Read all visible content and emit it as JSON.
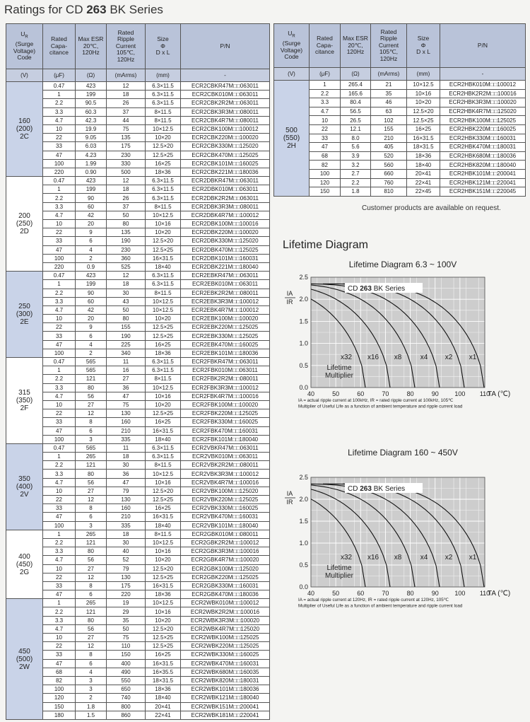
{
  "title": {
    "prefix": "Ratings for CD",
    "bold": "263",
    "suffix": "BK Series"
  },
  "table_headers": {
    "ur": {
      "symbol": "U",
      "sub": "R",
      "rest": "(Surge\nVoltage)\nCode"
    },
    "columns": [
      "Rated\nCapa-\ncitance",
      "Max ESR\n20℃,\n120Hz",
      "Rated\nRipple\nCurrent\n105℃,\n120Hz",
      "Size\nΦ\nD x L",
      "P/N"
    ],
    "units": [
      "(V)",
      "(μF)",
      "(Ω)",
      "(mArms)",
      "(mm)",
      "-"
    ]
  },
  "left_table": {
    "groups": [
      {
        "code": "160\n(200)\n2C",
        "rows": [
          [
            "0.47",
            "423",
            "12",
            "6.3×11.5",
            "ECR2CBKR47M□□063011"
          ],
          [
            "1",
            "199",
            "18",
            "6.3×11.5",
            "ECR2CBK010M□□063011"
          ],
          [
            "2.2",
            "90.5",
            "26",
            "6.3×11.5",
            "ECR2CBK2R2M□□063011"
          ],
          [
            "3.3",
            "60.3",
            "37",
            "8×11.5",
            "ECR2CBK3R3M□□080011"
          ],
          [
            "4.7",
            "42.3",
            "44",
            "8×11.5",
            "ECR2CBK4R7M□□080011"
          ],
          [
            "10",
            "19.9",
            "75",
            "10×12.5",
            "ECR2CBK100M□□100012"
          ],
          [
            "22",
            "9.05",
            "135",
            "10×20",
            "ECR2CBK220M□□100020"
          ],
          [
            "33",
            "6.03",
            "175",
            "12.5×20",
            "ECR2CBK330M□□125020"
          ],
          [
            "47",
            "4.23",
            "230",
            "12.5×25",
            "ECR2CBK470M□□125025"
          ],
          [
            "100",
            "1.99",
            "330",
            "16×25",
            "ECR2CBK101M□□160025"
          ],
          [
            "220",
            "0.90",
            "500",
            "18×36",
            "ECR2CBK221M□□180036"
          ]
        ]
      },
      {
        "code": "200\n(250)\n2D",
        "rows": [
          [
            "0.47",
            "423",
            "12",
            "6.3×11.5",
            "ECR2DBKR47M□□063011"
          ],
          [
            "1",
            "199",
            "18",
            "6.3×11.5",
            "ECR2DBK010M□□063011"
          ],
          [
            "2.2",
            "90",
            "26",
            "6.3×11.5",
            "ECR2DBK2R2M□□063011"
          ],
          [
            "3.3",
            "60",
            "37",
            "8×11.5",
            "ECR2DBK3R3M□□080011"
          ],
          [
            "4.7",
            "42",
            "50",
            "10×12.5",
            "ECR2DBK4R7M□□100012"
          ],
          [
            "10",
            "20",
            "80",
            "10×16",
            "ECR2DBK100M□□100016"
          ],
          [
            "22",
            "9",
            "135",
            "10×20",
            "ECR2DBK220M□□100020"
          ],
          [
            "33",
            "6",
            "190",
            "12.5×20",
            "ECR2DBK330M□□125020"
          ],
          [
            "47",
            "4",
            "230",
            "12.5×25",
            "ECR2DBK470M□□125025"
          ],
          [
            "100",
            "2",
            "360",
            "16×31.5",
            "ECR2DBK101M□□160031"
          ],
          [
            "220",
            "0.9",
            "525",
            "18×40",
            "ECR2DBK221M□□180040"
          ]
        ]
      },
      {
        "code": "250\n(300)\n2E",
        "rows": [
          [
            "0.47",
            "423",
            "12",
            "6.3×11.5",
            "ECR2EBKR47M□□063011"
          ],
          [
            "1",
            "199",
            "18",
            "6.3×11.5",
            "ECR2EBK010M□□063011"
          ],
          [
            "2.2",
            "90",
            "30",
            "8×11.5",
            "ECR2EBK2R2M□□080011"
          ],
          [
            "3.3",
            "60",
            "43",
            "10×12.5",
            "ECR2EBK3R3M□□100012"
          ],
          [
            "4.7",
            "42",
            "50",
            "10×12.5",
            "ECR2EBK4R7M□□100012"
          ],
          [
            "10",
            "20",
            "80",
            "10×20",
            "ECR2EBK100M□□100020"
          ],
          [
            "22",
            "9",
            "155",
            "12.5×25",
            "ECR2EBK220M□□125025"
          ],
          [
            "33",
            "6",
            "190",
            "12.5×25",
            "ECR2EBK330M□□125025"
          ],
          [
            "47",
            "4",
            "225",
            "16×25",
            "ECR2EBK470M□□160025"
          ],
          [
            "100",
            "2",
            "340",
            "18×36",
            "ECR2EBK101M□□180036"
          ]
        ]
      },
      {
        "code": "315\n(350)\n2F",
        "rows": [
          [
            "0.47",
            "565",
            "11",
            "6.3×11.5",
            "ECR2FBKR47M□□063011"
          ],
          [
            "1",
            "565",
            "16",
            "6.3×11.5",
            "ECR2FBK010M□□063011"
          ],
          [
            "2.2",
            "121",
            "27",
            "8×11.5",
            "ECR2FBK2R2M□□080011"
          ],
          [
            "3.3",
            "80",
            "36",
            "10×12.5",
            "ECR2FBK3R3M□□100012"
          ],
          [
            "4.7",
            "56",
            "47",
            "10×16",
            "ECR2FBK4R7M□□100016"
          ],
          [
            "10",
            "27",
            "75",
            "10×20",
            "ECR2FBK100M□□100020"
          ],
          [
            "22",
            "12",
            "130",
            "12.5×25",
            "ECR2FBK220M□□125025"
          ],
          [
            "33",
            "8",
            "160",
            "16×25",
            "ECR2FBK330M□□160025"
          ],
          [
            "47",
            "6",
            "210",
            "16×31.5",
            "ECR2FBK470M□□160031"
          ],
          [
            "100",
            "3",
            "335",
            "18×40",
            "ECR2FBK101M□□180040"
          ]
        ]
      },
      {
        "code": "350\n(400)\n2V",
        "rows": [
          [
            "0.47",
            "565",
            "11",
            "6.3×11.5",
            "ECR2VBKR47M□□063011"
          ],
          [
            "1",
            "265",
            "18",
            "6.3×11.5",
            "ECR2VBK010M□□063011"
          ],
          [
            "2.2",
            "121",
            "30",
            "8×11.5",
            "ECR2VBK2R2M□□080011"
          ],
          [
            "3.3",
            "80",
            "36",
            "10×12.5",
            "ECR2VBK3R3M□□100012"
          ],
          [
            "4.7",
            "56",
            "47",
            "10×16",
            "ECR2VBK4R7M□□100016"
          ],
          [
            "10",
            "27",
            "79",
            "12.5×20",
            "ECR2VBK100M□□125020"
          ],
          [
            "22",
            "12",
            "130",
            "12.5×25",
            "ECR2VBK220M□□125025"
          ],
          [
            "33",
            "8",
            "160",
            "16×25",
            "ECR2VBK330M□□160025"
          ],
          [
            "47",
            "6",
            "210",
            "16×31.5",
            "ECR2VBK470M□□160031"
          ],
          [
            "100",
            "3",
            "335",
            "18×40",
            "ECR2VBK101M□□180040"
          ]
        ]
      },
      {
        "code": "400\n(450)\n2G",
        "rows": [
          [
            "1",
            "265",
            "18",
            "8×11.5",
            "ECR2GBK010M□□080011"
          ],
          [
            "2.2",
            "121",
            "30",
            "10×12.5",
            "ECR2GBK2R2M□□100012"
          ],
          [
            "3.3",
            "80",
            "40",
            "10×16",
            "ECR2GBK3R3M□□100016"
          ],
          [
            "4.7",
            "56",
            "52",
            "10×20",
            "ECR2GBK4R7M□□100020"
          ],
          [
            "10",
            "27",
            "79",
            "12.5×20",
            "ECR2GBK100M□□125020"
          ],
          [
            "22",
            "12",
            "130",
            "12.5×25",
            "ECR2GBK220M□□125025"
          ],
          [
            "33",
            "8",
            "175",
            "16×31.5",
            "ECR2GBK330M□□160031"
          ],
          [
            "47",
            "6",
            "220",
            "18×36",
            "ECR2GBK470M□□180036"
          ]
        ]
      },
      {
        "code": "450\n(500)\n2W",
        "rows": [
          [
            "1",
            "265",
            "19",
            "10×12.5",
            "ECR2WBK010M□□100012"
          ],
          [
            "2.2",
            "121",
            "29",
            "10×16",
            "ECR2WBK2R2M□□100016"
          ],
          [
            "3.3",
            "80",
            "35",
            "10×20",
            "ECR2WBK3R3M□□100020"
          ],
          [
            "4.7",
            "56",
            "50",
            "12.5×20",
            "ECR2WBK4R7M□□125020"
          ],
          [
            "10",
            "27",
            "75",
            "12.5×25",
            "ECR2WBK100M□□125025"
          ],
          [
            "22",
            "12",
            "110",
            "12.5×25",
            "ECR2WBK220M□□125025"
          ],
          [
            "33",
            "8",
            "150",
            "16×25",
            "ECR2WBK330M□□160025"
          ],
          [
            "47",
            "6",
            "400",
            "16×31.5",
            "ECR2WBK470M□□160031"
          ],
          [
            "68",
            "4",
            "490",
            "16×35.5",
            "ECR2WBK680M□□160035"
          ],
          [
            "82",
            "3",
            "550",
            "18×31.5",
            "ECR2WBK820M□□180031"
          ],
          [
            "100",
            "3",
            "650",
            "18×36",
            "ECR2WBK101M□□180036"
          ],
          [
            "120",
            "2",
            "740",
            "18×40",
            "ECR2WBK121M□□180040"
          ],
          [
            "150",
            "1.8",
            "800",
            "20×41",
            "ECR2WBK151M□□200041"
          ],
          [
            "180",
            "1.5",
            "860",
            "22×41",
            "ECR2WBK181M□□220041"
          ]
        ]
      }
    ]
  },
  "right_table": {
    "groups": [
      {
        "code": "500\n(550)\n2H",
        "rows": [
          [
            "1",
            "265.4",
            "21",
            "10×12.5",
            "ECR2HBK010M□□100012"
          ],
          [
            "2.2",
            "165.6",
            "35",
            "10×16",
            "ECR2HBK2R2M□□100016"
          ],
          [
            "3.3",
            "80.4",
            "46",
            "10×20",
            "ECR2HBK3R3M□□100020"
          ],
          [
            "4.7",
            "56.5",
            "63",
            "12.5×20",
            "ECR2HBK4R7M□□125020"
          ],
          [
            "10",
            "26.5",
            "102",
            "12.5×25",
            "ECR2HBK100M□□125025"
          ],
          [
            "22",
            "12.1",
            "155",
            "16×25",
            "ECR2HBK220M□□160025"
          ],
          [
            "33",
            "8.0",
            "210",
            "16×31.5",
            "ECR2HBK330M□□160031"
          ],
          [
            "47",
            "5.6",
            "405",
            "18×31.5",
            "ECR2HBK470M□□180031"
          ],
          [
            "68",
            "3.9",
            "520",
            "18×36",
            "ECR2HBK680M□□180036"
          ],
          [
            "82",
            "3.2",
            "560",
            "18×40",
            "ECR2HBK820M□□180040"
          ],
          [
            "100",
            "2.7",
            "660",
            "20×41",
            "ECR2HBK101M□□200041"
          ],
          [
            "120",
            "2.2",
            "760",
            "22×41",
            "ECR2HBK121M□□220041"
          ],
          [
            "150",
            "1.8",
            "810",
            "22×45",
            "ECR2HBK151M□□220045"
          ]
        ]
      }
    ]
  },
  "note": "Customer products are available on request.",
  "lifetime": {
    "heading": "Lifetime Diagram",
    "diagrams": [
      {
        "title": "Lifetime Diagram 6.3 ~ 100V",
        "legend": {
          "prefix": "CD",
          "bold": "263",
          "suffix": "BK Series"
        },
        "xlim": [
          40,
          110
        ],
        "xticks": [
          40,
          50,
          60,
          70,
          80,
          90,
          100,
          110
        ],
        "ylim": [
          0,
          2.5
        ],
        "yticks": [
          {
            "value": 0,
            "label": "0.0"
          },
          {
            "value": 0.5,
            "label": "0.5"
          },
          {
            "value": 1,
            "label": "1.0"
          },
          {
            "value": 1.5,
            "label": "1.5"
          },
          {
            "value": 2,
            "label": "2.0"
          },
          {
            "value": 2.5,
            "label": "2.5"
          }
        ],
        "multipliers": [
          "x32",
          "x16",
          "x8",
          "x4",
          "x2",
          "x1"
        ],
        "multiplier_label": "Lifetime\nMultiplier",
        "x_label": "TA (℃)",
        "y_label": {
          "top": "IA",
          "bottom": "IR"
        },
        "footnotes": [
          "IA = actual ripple current at 100kHz, IR = rated ripple current at 100kHz, 105℃",
          "Multiplier of Useful Life as a function of ambient temperature and ripple current load"
        ]
      },
      {
        "title": "Lifetime Diagram 160 ~ 450V",
        "legend": {
          "prefix": "CD",
          "bold": "263",
          "suffix": "BK Series"
        },
        "xlim": [
          40,
          110
        ],
        "xticks": [
          40,
          50,
          60,
          70,
          80,
          90,
          100,
          110
        ],
        "ylim": [
          0,
          2.5
        ],
        "yticks": [
          {
            "value": 0,
            "label": "0.0"
          },
          {
            "value": 0.5,
            "label": "0.5"
          },
          {
            "value": 1,
            "label": "1.0"
          },
          {
            "value": 1.5,
            "label": "1.5"
          },
          {
            "value": 2,
            "label": "2.0"
          },
          {
            "value": 2.5,
            "label": "2.5"
          }
        ],
        "multipliers": [
          "x32",
          "x16",
          "x8",
          "x4",
          "x2",
          "x1"
        ],
        "multiplier_label": "Lifetime\nMultiplier",
        "x_label": "TA (℃)",
        "y_label": {
          "top": "IA",
          "bottom": "IR"
        },
        "footnotes": [
          "IA = actual ripple current at 120Hz, IR = rated ripple current at 120Hz, 105℃",
          "Multiplier of Useful Life as a function of ambient temperature and ripple current load"
        ]
      }
    ]
  }
}
